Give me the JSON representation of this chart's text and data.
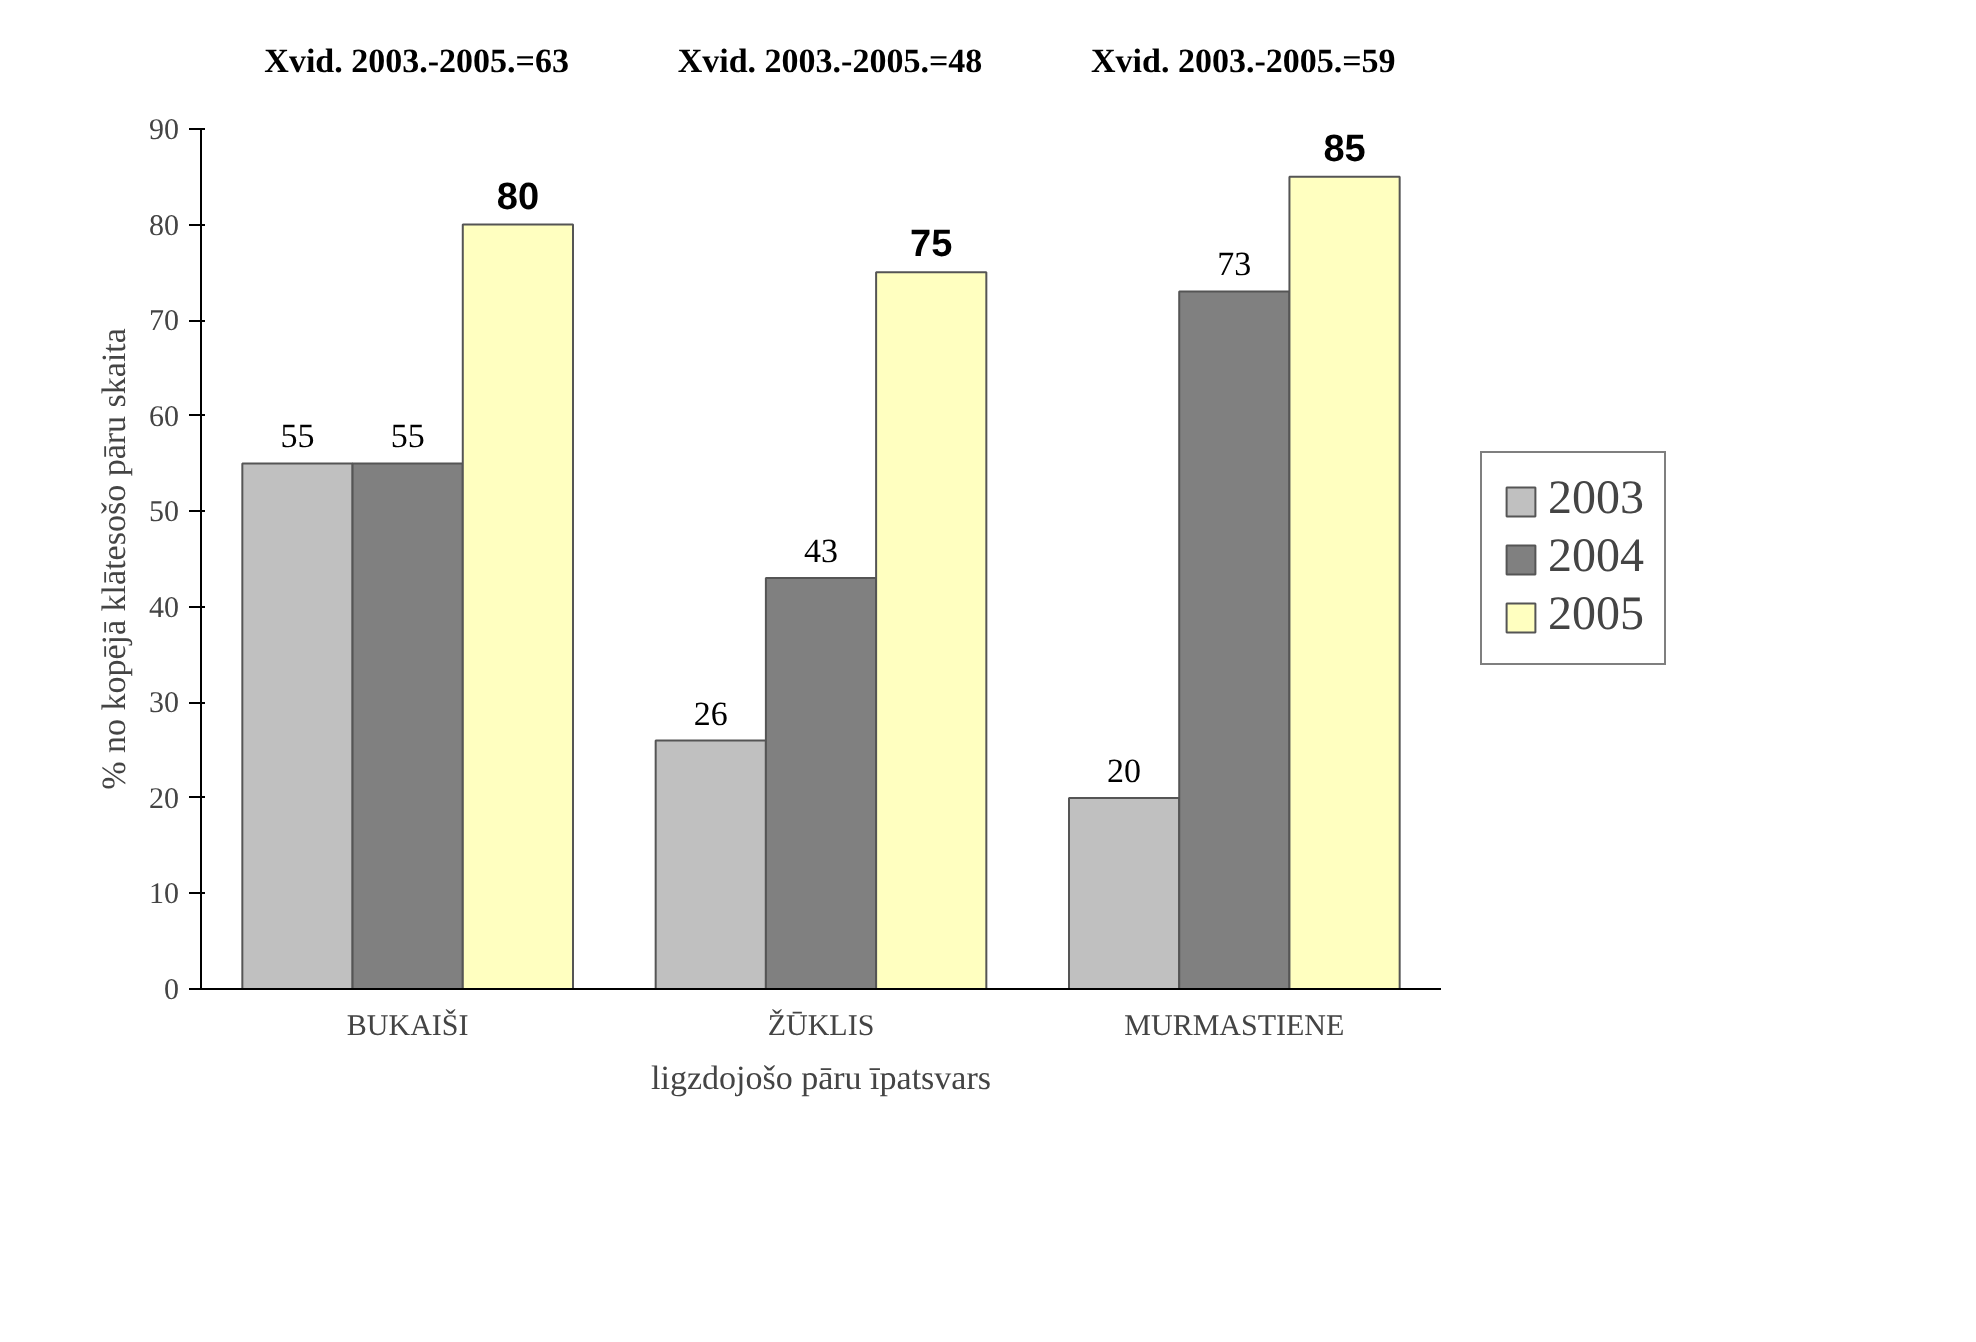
{
  "chart_data": {
    "type": "bar",
    "xlabel": "ligzdojošo pāru īpatsvars",
    "ylabel": "% no kopējā klātesošo pāru skaita",
    "categories": [
      "BUKAIŠI",
      "ŽŪKLIS",
      "MURMASTIENE"
    ],
    "series": [
      {
        "name": "2003",
        "color": "#c0c0c0",
        "values": [
          55,
          26,
          20
        ]
      },
      {
        "name": "2004",
        "color": "#808080",
        "values": [
          55,
          43,
          73
        ]
      },
      {
        "name": "2005",
        "color": "#ffffc0",
        "values": [
          80,
          75,
          85
        ]
      }
    ],
    "annotations": [
      "Xvid. 2003.-2005.=63",
      "Xvid. 2003.-2005.=48",
      "Xvid. 2003.-2005.=59"
    ],
    "ylim": [
      0,
      90
    ],
    "yticks": [
      0,
      10,
      20,
      30,
      40,
      50,
      60,
      70,
      80,
      90
    ],
    "data_labels": true,
    "legend": "right",
    "grid": false
  }
}
